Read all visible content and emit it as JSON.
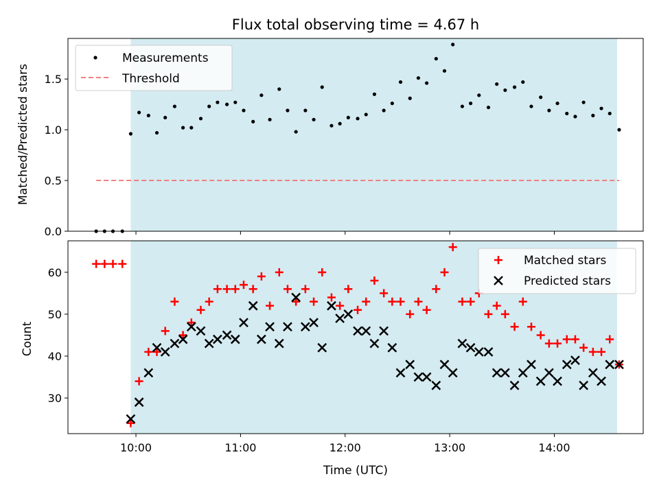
{
  "chart_data": [
    {
      "type": "scatter",
      "title": "Flux total observing time = 4.67 h",
      "xlabel": "",
      "ylabel": "Matched/Predicted stars",
      "ylim": [
        0,
        1.9
      ],
      "yticks": [
        "0.0",
        "0.5",
        "1.0",
        "1.5"
      ],
      "ytick_values": [
        0,
        0.5,
        1.0,
        1.5
      ],
      "shaded_span_hours": [
        9.95,
        14.6
      ],
      "shade_color": "#d4ebf1",
      "legend_position": "upper-left",
      "series": [
        {
          "name": "Measurements",
          "marker": "dot",
          "color": "#000000",
          "x": [
            9.62,
            9.7,
            9.78,
            9.87,
            9.95,
            10.03,
            10.12,
            10.2,
            10.28,
            10.37,
            10.45,
            10.53,
            10.62,
            10.7,
            10.78,
            10.87,
            10.95,
            11.03,
            11.12,
            11.2,
            11.28,
            11.37,
            11.45,
            11.53,
            11.62,
            11.7,
            11.78,
            11.87,
            11.95,
            12.03,
            12.12,
            12.2,
            12.28,
            12.37,
            12.45,
            12.53,
            12.62,
            12.7,
            12.78,
            12.87,
            12.95,
            13.03,
            13.12,
            13.2,
            13.28,
            13.37,
            13.45,
            13.53,
            13.62,
            13.7,
            13.78,
            13.87,
            13.95,
            14.03,
            14.12,
            14.2,
            14.28,
            14.37,
            14.45,
            14.53,
            14.62
          ],
          "y": [
            0,
            0,
            0,
            0,
            0.96,
            1.17,
            1.14,
            0.97,
            1.12,
            1.23,
            1.02,
            1.02,
            1.11,
            1.23,
            1.27,
            1.25,
            1.27,
            1.19,
            1.08,
            1.34,
            1.1,
            1.4,
            1.19,
            0.98,
            1.19,
            1.1,
            1.42,
            1.04,
            1.06,
            1.12,
            1.11,
            1.15,
            1.35,
            1.19,
            1.26,
            1.47,
            1.31,
            1.51,
            1.46,
            1.7,
            1.58,
            1.84,
            1.23,
            1.26,
            1.34,
            1.22,
            1.45,
            1.39,
            1.42,
            1.47,
            1.23,
            1.32,
            1.19,
            1.26,
            1.16,
            1.13,
            1.27,
            1.14,
            1.21,
            1.16,
            1.0
          ]
        },
        {
          "name": "Threshold",
          "marker": "dashed-line",
          "color": "#f08080",
          "x": [
            9.62,
            14.62
          ],
          "y": [
            0.5,
            0.5
          ]
        }
      ]
    },
    {
      "type": "scatter",
      "title": "",
      "xlabel": "Time (UTC)",
      "ylabel": "Count",
      "ylim": [
        21.5,
        67.5
      ],
      "yticks": [
        "30",
        "40",
        "50",
        "60"
      ],
      "ytick_values": [
        30,
        40,
        50,
        60
      ],
      "xlim_hours": [
        9.35,
        14.85
      ],
      "xticks": [
        "10:00",
        "11:00",
        "12:00",
        "13:00",
        "14:00"
      ],
      "xtick_values": [
        10,
        11,
        12,
        13,
        14
      ],
      "shaded_span_hours": [
        9.95,
        14.6
      ],
      "shade_color": "#d4ebf1",
      "legend_position": "upper-right",
      "series": [
        {
          "name": "Matched stars",
          "marker": "plus",
          "color": "#ff0000",
          "x": [
            9.62,
            9.7,
            9.78,
            9.87,
            9.95,
            10.03,
            10.12,
            10.2,
            10.28,
            10.37,
            10.45,
            10.53,
            10.62,
            10.7,
            10.78,
            10.87,
            10.95,
            11.03,
            11.12,
            11.2,
            11.28,
            11.37,
            11.45,
            11.53,
            11.62,
            11.7,
            11.78,
            11.87,
            11.95,
            12.03,
            12.12,
            12.2,
            12.28,
            12.37,
            12.45,
            12.53,
            12.62,
            12.7,
            12.78,
            12.87,
            12.95,
            13.03,
            13.12,
            13.2,
            13.28,
            13.37,
            13.45,
            13.53,
            13.62,
            13.7,
            13.78,
            13.87,
            13.95,
            14.03,
            14.12,
            14.2,
            14.28,
            14.37,
            14.45,
            14.53,
            14.62
          ],
          "y": [
            62,
            62,
            62,
            62,
            24,
            34,
            41,
            41,
            46,
            53,
            45,
            48,
            51,
            53,
            56,
            56,
            56,
            57,
            56,
            59,
            52,
            60,
            56,
            53,
            56,
            53,
            60,
            54,
            52,
            56,
            51,
            53,
            58,
            55,
            53,
            53,
            50,
            53,
            51,
            56,
            60,
            66,
            53,
            53,
            55,
            50,
            52,
            50,
            47,
            53,
            47,
            45,
            43,
            43,
            44,
            44,
            42,
            41,
            41,
            44,
            38
          ]
        },
        {
          "name": "Predicted stars",
          "marker": "x",
          "color": "#000000",
          "x": [
            9.95,
            10.03,
            10.12,
            10.2,
            10.28,
            10.37,
            10.45,
            10.53,
            10.62,
            10.7,
            10.78,
            10.87,
            10.95,
            11.03,
            11.12,
            11.2,
            11.28,
            11.37,
            11.45,
            11.53,
            11.62,
            11.7,
            11.78,
            11.87,
            11.95,
            12.03,
            12.12,
            12.2,
            12.28,
            12.37,
            12.45,
            12.53,
            12.62,
            12.7,
            12.78,
            12.87,
            12.95,
            13.03,
            13.12,
            13.2,
            13.28,
            13.37,
            13.45,
            13.53,
            13.62,
            13.7,
            13.78,
            13.87,
            13.95,
            14.03,
            14.12,
            14.2,
            14.28,
            14.37,
            14.45,
            14.53,
            14.62
          ],
          "y": [
            25,
            29,
            36,
            42,
            41,
            43,
            44,
            47,
            46,
            43,
            44,
            45,
            44,
            48,
            52,
            44,
            47,
            43,
            47,
            54,
            47,
            48,
            42,
            52,
            49,
            50,
            46,
            46,
            43,
            46,
            42,
            36,
            38,
            35,
            35,
            33,
            38,
            36,
            43,
            42,
            41,
            41,
            36,
            36,
            33,
            36,
            38,
            34,
            36,
            34,
            38,
            39,
            33,
            36,
            34,
            38,
            38
          ]
        }
      ]
    }
  ]
}
